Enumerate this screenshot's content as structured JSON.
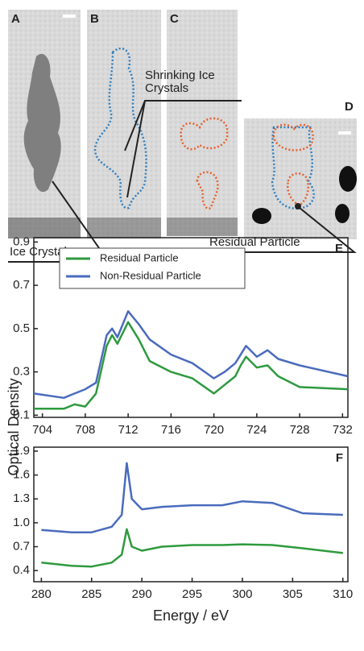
{
  "images": {
    "panel_labels": [
      "A",
      "B",
      "C",
      "D"
    ],
    "annotations": [
      "Shrinking Ice Crystals",
      "Ice Crystal",
      "Residual Particle"
    ]
  },
  "chart_data": [
    {
      "type": "line",
      "panel_label": "E",
      "ylabel": "Optical Density",
      "x": [
        703.2,
        706,
        707,
        708,
        709,
        710,
        710.5,
        711,
        712,
        713,
        714,
        716,
        718,
        720,
        721,
        722,
        722.5,
        723,
        724,
        725,
        726,
        728,
        732.5
      ],
      "series": [
        {
          "name": "Residual Particle",
          "color": "#2e9a3e",
          "values": [
            0.13,
            0.13,
            0.15,
            0.14,
            0.2,
            0.42,
            0.47,
            0.43,
            0.53,
            0.45,
            0.35,
            0.3,
            0.27,
            0.2,
            0.24,
            0.28,
            0.33,
            0.37,
            0.32,
            0.33,
            0.28,
            0.23,
            0.22
          ]
        },
        {
          "name": "Non-Residual Particle",
          "color": "#4a6bbd",
          "values": [
            0.2,
            0.18,
            0.2,
            0.22,
            0.25,
            0.47,
            0.5,
            0.46,
            0.58,
            0.52,
            0.45,
            0.38,
            0.34,
            0.27,
            0.3,
            0.34,
            0.38,
            0.42,
            0.37,
            0.4,
            0.36,
            0.33,
            0.28
          ]
        }
      ],
      "xlim": [
        703.2,
        732.5
      ],
      "xticks": [
        704,
        708,
        712,
        716,
        720,
        724,
        728,
        732
      ],
      "ylim": [
        0.09,
        0.92
      ],
      "yticks": [
        0.1,
        0.3,
        0.5,
        0.7,
        0.9
      ],
      "legend": "upper-left"
    },
    {
      "type": "line",
      "panel_label": "F",
      "xlabel": "Energy / eV",
      "x": [
        280,
        283,
        285,
        287,
        288,
        288.5,
        289,
        290,
        292,
        295,
        298,
        300,
        303,
        306,
        310
      ],
      "series": [
        {
          "name": "Residual Particle",
          "color": "#2e9a3e",
          "values": [
            0.5,
            0.46,
            0.45,
            0.5,
            0.6,
            0.92,
            0.7,
            0.65,
            0.7,
            0.72,
            0.72,
            0.73,
            0.72,
            0.68,
            0.62
          ]
        },
        {
          "name": "Non-Residual Particle",
          "color": "#4a6bbd",
          "values": [
            0.91,
            0.88,
            0.88,
            0.95,
            1.1,
            1.75,
            1.3,
            1.17,
            1.2,
            1.22,
            1.22,
            1.27,
            1.25,
            1.12,
            1.1
          ]
        }
      ],
      "xlim": [
        279.25,
        310.5
      ],
      "xticks": [
        280,
        285,
        290,
        295,
        300,
        305,
        310
      ],
      "ylim": [
        0.26,
        1.95
      ],
      "yticks": [
        0.4,
        0.7,
        {
          "value": 1,
          "label": "1.0"
        },
        1.3,
        1.6,
        1.9
      ]
    }
  ]
}
